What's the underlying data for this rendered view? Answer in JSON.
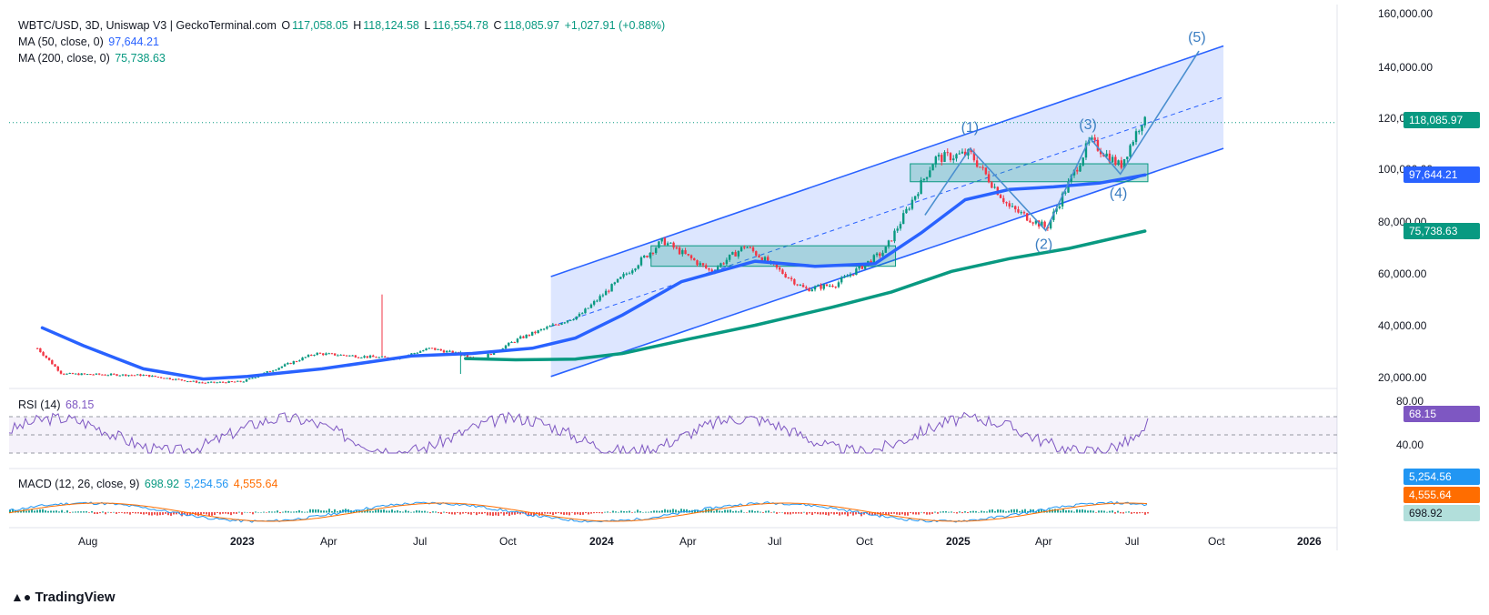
{
  "header": {
    "symbol": "WBTC/USD, 3D, Uniswap V3 | GeckoTerminal.com",
    "o_label": "O",
    "o_value": "117,058.05",
    "h_label": "H",
    "h_value": "118,124.58",
    "l_label": "L",
    "l_value": "116,554.78",
    "c_label": "C",
    "c_value": "118,085.97",
    "change": "+1,027.91 (+0.88%)",
    "ma50_label": "MA (50, close, 0)",
    "ma50_value": "97,644.21",
    "ma200_label": "MA (200, close, 0)",
    "ma200_value": "75,738.63"
  },
  "rsi_legend": {
    "label": "RSI (14)",
    "value": "68.15"
  },
  "macd_legend": {
    "label": "MACD (12, 26, close, 9)",
    "hist": "698.92",
    "macd": "5,254.56",
    "signal": "4,555.64"
  },
  "price_tags": {
    "close": "118,085.97",
    "ma50": "97,644.21",
    "ma200": "75,738.63",
    "rsi": "68.15",
    "macd": "5,254.56",
    "signal": "4,555.64",
    "hist": "698.92"
  },
  "price_axis": [
    "160,000.00",
    "140,000.00",
    "120,000.00",
    "100,000.00",
    "80,000.00",
    "60,000.00",
    "40,000.00",
    "20,000.00"
  ],
  "rsi_axis": [
    "80.00",
    "40.00"
  ],
  "time_axis": [
    "Aug",
    "2023",
    "Apr",
    "Jul",
    "Oct",
    "2024",
    "Apr",
    "Jul",
    "Oct",
    "2025",
    "Apr",
    "Jul",
    "Oct",
    "2026"
  ],
  "wave_labels": [
    "(1)",
    "(2)",
    "(3)",
    "(4)",
    "(5)"
  ],
  "branding": "TradingView",
  "colors": {
    "up": "#089981",
    "down": "#f23645",
    "ma50": "#2962ff",
    "ma200": "#089981",
    "channel": "#2962ff",
    "rsi": "#7e57c2",
    "macd": "#2196f3",
    "signal": "#ff6d00"
  },
  "chart_data": {
    "type": "line",
    "title": "WBTC/USD, 3D, Uniswap V3",
    "price_range": [
      15000,
      165000
    ],
    "series": [
      {
        "name": "MA (50, close, 0)",
        "points": [
          [
            "2022-06-20",
            38000
          ],
          [
            "2022-08-01",
            31000
          ],
          [
            "2022-10-01",
            22000
          ],
          [
            "2022-12-01",
            18000
          ],
          [
            "2023-01-15",
            19000
          ],
          [
            "2023-04-01",
            22000
          ],
          [
            "2023-07-01",
            27000
          ],
          [
            "2023-09-01",
            28000
          ],
          [
            "2023-11-01",
            30000
          ],
          [
            "2023-12-15",
            34000
          ],
          [
            "2024-02-01",
            43000
          ],
          [
            "2024-04-01",
            56000
          ],
          [
            "2024-06-15",
            64000
          ],
          [
            "2024-08-15",
            62000
          ],
          [
            "2024-10-15",
            63000
          ],
          [
            "2024-12-01",
            75000
          ],
          [
            "2025-01-15",
            88000
          ],
          [
            "2025-03-01",
            92000
          ],
          [
            "2025-04-15",
            93000
          ],
          [
            "2025-06-01",
            94500
          ],
          [
            "2025-07-17",
            97644
          ]
        ]
      },
      {
        "name": "MA (200, close, 0)",
        "points": [
          [
            "2023-08-25",
            26000
          ],
          [
            "2023-10-15",
            25500
          ],
          [
            "2023-12-15",
            25800
          ],
          [
            "2024-02-01",
            28000
          ],
          [
            "2024-04-01",
            33000
          ],
          [
            "2024-06-15",
            39000
          ],
          [
            "2024-09-01",
            46000
          ],
          [
            "2024-11-01",
            52000
          ],
          [
            "2025-01-01",
            60000
          ],
          [
            "2025-03-01",
            65000
          ],
          [
            "2025-05-01",
            69000
          ],
          [
            "2025-07-17",
            75739
          ]
        ]
      }
    ],
    "waves": [
      {
        "label": "(1)",
        "date": "2025-01-20",
        "price": 108000
      },
      {
        "label": "(2)",
        "date": "2025-04-07",
        "price": 76000
      },
      {
        "label": "(3)",
        "date": "2025-05-22",
        "price": 112000
      },
      {
        "label": "(4)",
        "date": "2025-06-22",
        "price": 98000
      },
      {
        "label": "(5)",
        "date": "2025-09-10",
        "price": 146000
      }
    ],
    "last_close": 118085.97,
    "rsi": {
      "range": [
        30,
        90
      ],
      "last": 68.15,
      "bands": [
        70,
        50,
        30
      ]
    },
    "macd": {
      "macd": 5254.56,
      "signal": 4555.64,
      "hist": 698.92
    }
  }
}
